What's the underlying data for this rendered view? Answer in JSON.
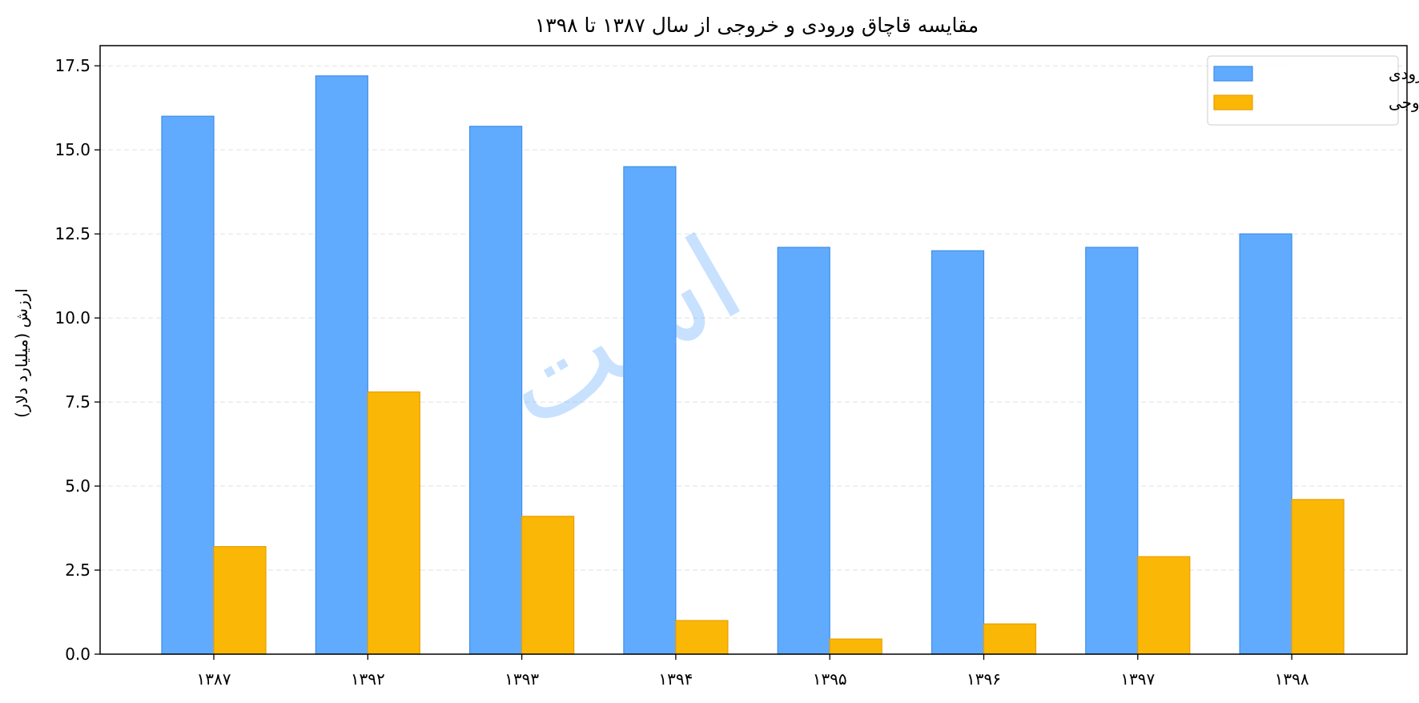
{
  "chart_data": {
    "type": "bar",
    "title": "مقایسه قاچاق ورودی و خروجی از سال ۱۳۸۷ تا ۱۳۹۸",
    "xlabel": "",
    "ylabel": "ارزش (میلیارد دلار)",
    "categories": [
      "۱۳۸۷",
      "۱۳۹۲",
      "۱۳۹۳",
      "۱۳۹۴",
      "۱۳۹۵",
      "۱۳۹۶",
      "۱۳۹۷",
      "۱۳۹۸"
    ],
    "series": [
      {
        "name": "قاچاق ورودی",
        "values": [
          16.0,
          17.2,
          15.7,
          14.5,
          12.1,
          12.0,
          12.1,
          12.5
        ],
        "color": "#61abff",
        "edge": "#3d8ee8"
      },
      {
        "name": "قاچاق خروجی",
        "values": [
          3.2,
          7.8,
          4.1,
          1.0,
          0.45,
          0.9,
          2.9,
          4.6
        ],
        "color": "#fbb705",
        "edge": "#e89f00"
      }
    ],
    "ylim": [
      0,
      18.1
    ],
    "yticks": [
      "0.0",
      "2.5",
      "5.0",
      "7.5",
      "10.0",
      "12.5",
      "15.0",
      "17.5"
    ],
    "grid": true,
    "legend_position": "top-right",
    "watermark": "است"
  }
}
